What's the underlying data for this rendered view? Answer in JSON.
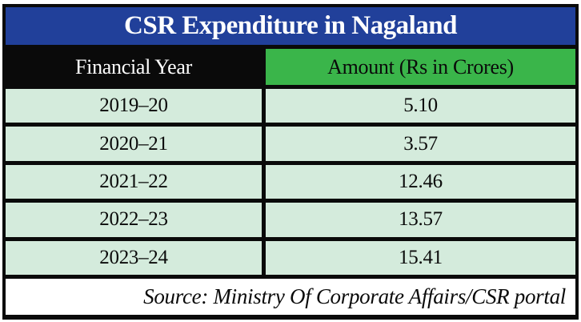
{
  "title": "CSR Expenditure in Nagaland",
  "chart_data": {
    "type": "table",
    "title": "CSR Expenditure in Nagaland",
    "columns": [
      "Financial Year",
      "Amount (Rs in Crores)"
    ],
    "categories": [
      "2019–20",
      "2020–21",
      "2021–22",
      "2022–23",
      "2023–24"
    ],
    "values": [
      5.1,
      3.57,
      12.46,
      13.57,
      15.41
    ],
    "source": "Source: Ministry Of Corporate Affairs/CSR portal"
  },
  "table": {
    "header": {
      "year_label": "Financial Year",
      "amount_label": "Amount (Rs in Crores)"
    },
    "rows": [
      {
        "year": "2019–20",
        "amount": "5.10"
      },
      {
        "year": "2020–21",
        "amount": "3.57"
      },
      {
        "year": "2021–22",
        "amount": "12.46"
      },
      {
        "year": "2022–23",
        "amount": "13.57"
      },
      {
        "year": "2023–24",
        "amount": "15.41"
      }
    ]
  },
  "footer": {
    "source_text": "Source: Ministry Of Corporate Affairs/CSR portal"
  },
  "colors": {
    "title_bg": "#21409A",
    "header_left_bg": "#0a0a0a",
    "header_right_bg": "#3AB54A",
    "row_bg": "#D4EBDC",
    "border": "#0a0a0a",
    "footer_bg": "#ffffff"
  }
}
